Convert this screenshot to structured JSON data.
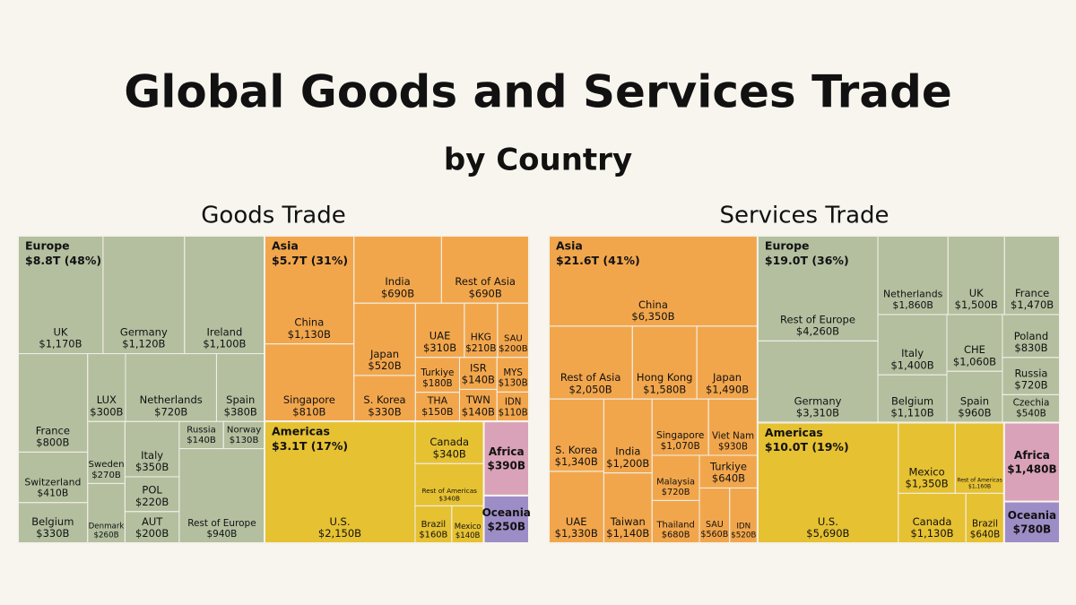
{
  "title": "Global Goods and Services Trade",
  "subtitle": "by Country",
  "chart_data": [
    {
      "type": "treemap",
      "title": "Goods Trade",
      "groups": [
        {
          "name": "Europe",
          "total": 8800,
          "total_label": "$8.8T (48%)",
          "color": "#b3bf9f",
          "categories": [
            "UK",
            "Germany",
            "Ireland",
            "France",
            "Switzerland",
            "Belgium",
            "LUX",
            "Netherlands",
            "Spain",
            "Sweden",
            "Denmark",
            "Italy",
            "POL",
            "AUT",
            "Russia",
            "Norway",
            "Rest of Europe"
          ],
          "values": [
            1170,
            1120,
            1100,
            800,
            410,
            330,
            300,
            720,
            380,
            270,
            260,
            350,
            220,
            200,
            140,
            130,
            940
          ],
          "value_labels": [
            "$1,170B",
            "$1,120B",
            "$1,100B",
            "$800B",
            "$410B",
            "$330B",
            "$300B",
            "$720B",
            "$380B",
            "$270B",
            "$260B",
            "$350B",
            "$220B",
            "$200B",
            "$140B",
            "$130B",
            "$940B"
          ]
        },
        {
          "name": "Asia",
          "total": 5700,
          "total_label": "$5.7T (31%)",
          "color": "#f2a64c",
          "categories": [
            "China",
            "Singapore",
            "India",
            "Rest of Asia",
            "Japan",
            "S. Korea",
            "UAE",
            "HKG",
            "SAU",
            "Turkiye",
            "THA",
            "ISR",
            "TWN",
            "MYS",
            "IDN"
          ],
          "values": [
            1130,
            810,
            690,
            690,
            520,
            330,
            310,
            210,
            200,
            180,
            150,
            140,
            140,
            130,
            110
          ],
          "value_labels": [
            "$1,130B",
            "$810B",
            "$690B",
            "$690B",
            "$520B",
            "$330B",
            "$310B",
            "$210B",
            "$200B",
            "$180B",
            "$150B",
            "$140B",
            "$140B",
            "$130B",
            "$110B"
          ]
        },
        {
          "name": "Americas",
          "total": 3100,
          "total_label": "$3.1T (17%)",
          "color": "#e6c132",
          "categories": [
            "U.S.",
            "Canada",
            "Rest of Americas",
            "Brazil",
            "Mexico"
          ],
          "values": [
            2150,
            340,
            340,
            160,
            140
          ],
          "value_labels": [
            "$2,150B",
            "$340B",
            "$340B",
            "$160B",
            "$140B"
          ]
        },
        {
          "name": "Africa",
          "total": 390,
          "total_label": "$390B",
          "color": "#d9a2b8"
        },
        {
          "name": "Oceania",
          "total": 250,
          "total_label": "$250B",
          "color": "#9d8dc6"
        }
      ]
    },
    {
      "type": "treemap",
      "title": "Services Trade",
      "groups": [
        {
          "name": "Asia",
          "total": 21600,
          "total_label": "$21.6T (41%)",
          "color": "#f2a64c",
          "categories": [
            "China",
            "Rest of Asia",
            "Hong Kong",
            "Japan",
            "S. Korea",
            "UAE",
            "India",
            "Taiwan",
            "Singapore",
            "Viet Nam",
            "Malaysia",
            "Thailand",
            "Turkiye",
            "SAU",
            "IDN"
          ],
          "values": [
            6350,
            2050,
            1580,
            1490,
            1340,
            1330,
            1200,
            1140,
            1070,
            930,
            720,
            680,
            640,
            560,
            520
          ],
          "value_labels": [
            "$6,350B",
            "$2,050B",
            "$1,580B",
            "$1,490B",
            "$1,340B",
            "$1,330B",
            "$1,200B",
            "$1,140B",
            "$1,070B",
            "$930B",
            "$720B",
            "$680B",
            "$640B",
            "$560B",
            "$520B"
          ]
        },
        {
          "name": "Europe",
          "total": 19000,
          "total_label": "$19.0T (36%)",
          "color": "#b3bf9f",
          "categories": [
            "Rest of Europe",
            "Germany",
            "Netherlands",
            "UK",
            "France",
            "Italy",
            "Belgium",
            "CHE",
            "Spain",
            "Poland",
            "Russia",
            "Czechia"
          ],
          "values": [
            4260,
            3310,
            1860,
            1500,
            1470,
            1400,
            1110,
            1060,
            960,
            830,
            720,
            540
          ],
          "value_labels": [
            "$4,260B",
            "$3,310B",
            "$1,860B",
            "$1,500B",
            "$1,470B",
            "$1,400B",
            "$1,110B",
            "$1,060B",
            "$960B",
            "$830B",
            "$720B",
            "$540B"
          ]
        },
        {
          "name": "Americas",
          "total": 10000,
          "total_label": "$10.0T (19%)",
          "color": "#e6c132",
          "categories": [
            "U.S.",
            "Mexico",
            "Rest of Americas",
            "Canada",
            "Brazil"
          ],
          "values": [
            5690,
            1350,
            1160,
            1130,
            640
          ],
          "value_labels": [
            "$5,690B",
            "$1,350B",
            "$1,160B",
            "$1,130B",
            "$640B"
          ]
        },
        {
          "name": "Africa",
          "total": 1480,
          "total_label": "$1,480B",
          "color": "#d9a2b8"
        },
        {
          "name": "Oceania",
          "total": 780,
          "total_label": "$780B",
          "color": "#9d8dc6"
        }
      ]
    }
  ]
}
